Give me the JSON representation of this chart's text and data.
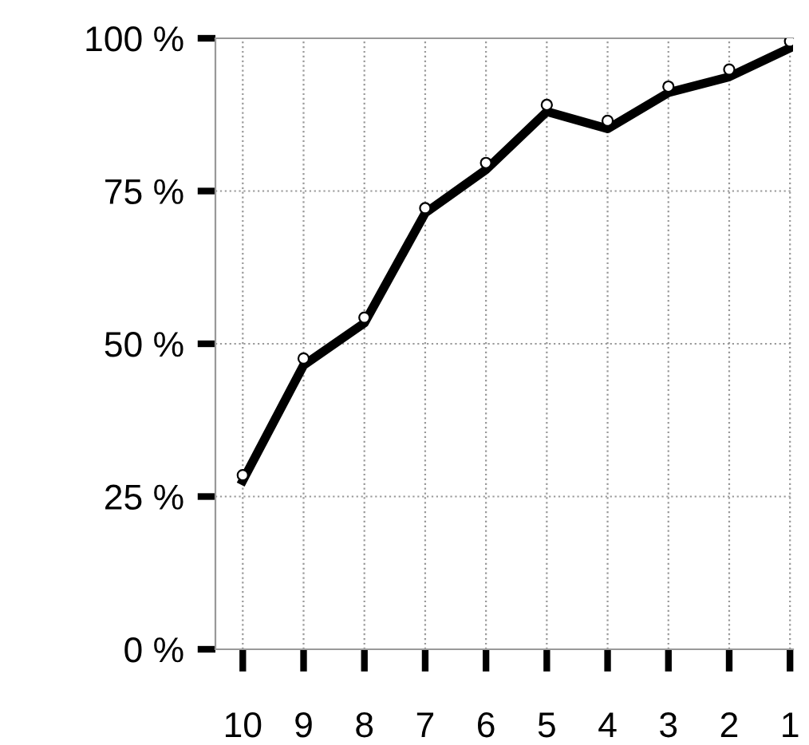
{
  "chart_data": {
    "type": "line",
    "categories": [
      "10",
      "9",
      "8",
      "7",
      "6",
      "5",
      "4",
      "3",
      "2",
      "1"
    ],
    "series": [
      {
        "color": "#000000",
        "marker": "none",
        "line_style": "solid",
        "values": [
          27.6,
          46.5,
          53.4,
          71.4,
          78.5,
          88,
          85.2,
          91.1,
          93.7,
          98.4
        ]
      },
      {
        "type": "scatter",
        "color": "#000000",
        "marker": "circle",
        "values": [
          28.5,
          47.6,
          54.3,
          72.2,
          79.6,
          89.1,
          86.5,
          92.1,
          94.9,
          99.5
        ]
      }
    ],
    "ylim": [
      0,
      100
    ],
    "yticks": [
      {
        "value": 0,
        "label": "0 %"
      },
      {
        "value": 25,
        "label": "25 %"
      },
      {
        "value": 50,
        "label": "50 %"
      },
      {
        "value": 75,
        "label": "75 %"
      },
      {
        "value": 100,
        "label": "100 %"
      }
    ],
    "grid": true,
    "legend": false
  }
}
